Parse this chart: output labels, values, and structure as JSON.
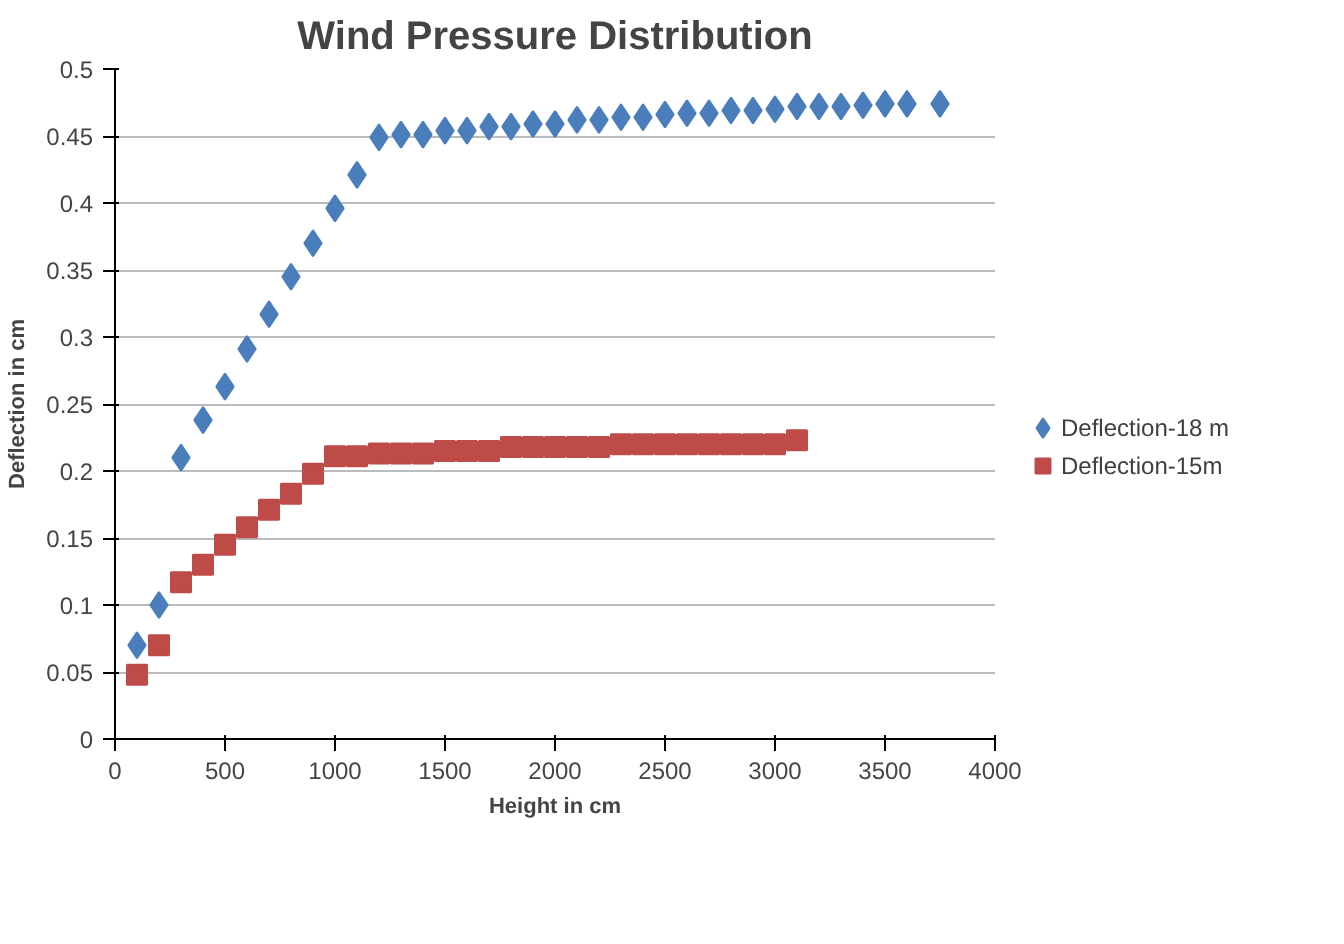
{
  "chart_data": {
    "type": "scatter",
    "title": "Wind Pressure Distribution",
    "xlabel": "Height in cm",
    "ylabel": "Deflection in cm",
    "series": [
      {
        "name": "Deflection-18 m",
        "color": "#4a7ebb",
        "marker": "diamond",
        "x": [
          100,
          200,
          300,
          400,
          500,
          600,
          700,
          800,
          900,
          1000,
          1100,
          1200,
          1300,
          1400,
          1500,
          1600,
          1700,
          1800,
          1900,
          2000,
          2100,
          2200,
          2300,
          2400,
          2500,
          2600,
          2700,
          2800,
          2900,
          3000,
          3100,
          3200,
          3300,
          3400,
          3500,
          3600,
          3750
        ],
        "values": [
          0.07,
          0.1,
          0.21,
          0.238,
          0.263,
          0.291,
          0.317,
          0.345,
          0.37,
          0.396,
          0.421,
          0.449,
          0.451,
          0.451,
          0.454,
          0.454,
          0.457,
          0.457,
          0.459,
          0.459,
          0.462,
          0.462,
          0.464,
          0.464,
          0.466,
          0.467,
          0.467,
          0.469,
          0.469,
          0.47,
          0.472,
          0.472,
          0.472,
          0.473,
          0.474,
          0.474,
          0.474
        ]
      },
      {
        "name": "Deflection-15m",
        "color": "#be4b48",
        "marker": "square",
        "x": [
          100,
          200,
          300,
          400,
          500,
          600,
          700,
          800,
          900,
          1000,
          1100,
          1200,
          1300,
          1400,
          1500,
          1600,
          1700,
          1800,
          1900,
          2000,
          2100,
          2200,
          2300,
          2400,
          2500,
          2600,
          2700,
          2800,
          2900,
          3000,
          3100
        ],
        "values": [
          0.048,
          0.07,
          0.117,
          0.13,
          0.145,
          0.158,
          0.171,
          0.183,
          0.198,
          0.211,
          0.211,
          0.213,
          0.213,
          0.213,
          0.215,
          0.215,
          0.215,
          0.218,
          0.218,
          0.218,
          0.218,
          0.218,
          0.22,
          0.22,
          0.22,
          0.22,
          0.22,
          0.22,
          0.22,
          0.22,
          0.223
        ]
      }
    ],
    "xlim": [
      0,
      4000
    ],
    "xticks": [
      0,
      500,
      1000,
      1500,
      2000,
      2500,
      3000,
      3500,
      4000
    ],
    "ylim": [
      0,
      0.5
    ],
    "yticks": [
      0,
      0.05,
      0.1,
      0.15,
      0.2,
      0.25,
      0.3,
      0.35,
      0.4,
      0.45,
      0.5
    ],
    "grid": "y",
    "legend": "right"
  }
}
